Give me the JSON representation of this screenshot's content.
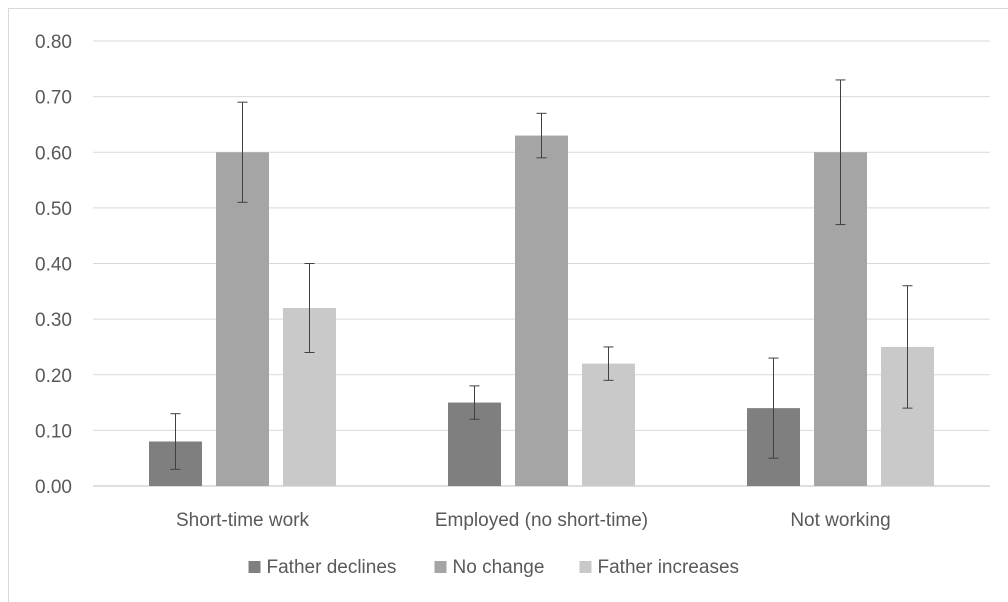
{
  "chart_data": {
    "type": "bar",
    "title": "",
    "xlabel": "",
    "ylabel": "",
    "ylim": [
      0,
      0.8
    ],
    "yticks": [
      "0.00",
      "0.10",
      "0.20",
      "0.30",
      "0.40",
      "0.50",
      "0.60",
      "0.70",
      "0.80"
    ],
    "grid": true,
    "legend_position": "bottom",
    "categories": [
      "Short-time work",
      "Employed (no short-time)",
      "Not working"
    ],
    "series": [
      {
        "name": "Father declines",
        "color": "#7f7f7f",
        "values": [
          0.08,
          0.15,
          0.14
        ],
        "error_low": [
          0.03,
          0.12,
          0.05
        ],
        "error_high": [
          0.13,
          0.18,
          0.23
        ]
      },
      {
        "name": "No change",
        "color": "#a5a5a5",
        "values": [
          0.6,
          0.63,
          0.6
        ],
        "error_low": [
          0.51,
          0.59,
          0.47
        ],
        "error_high": [
          0.69,
          0.67,
          0.73
        ]
      },
      {
        "name": "Father increases",
        "color": "#c9c9c9",
        "values": [
          0.32,
          0.22,
          0.25
        ],
        "error_low": [
          0.24,
          0.19,
          0.14
        ],
        "error_high": [
          0.4,
          0.25,
          0.36
        ]
      }
    ]
  }
}
